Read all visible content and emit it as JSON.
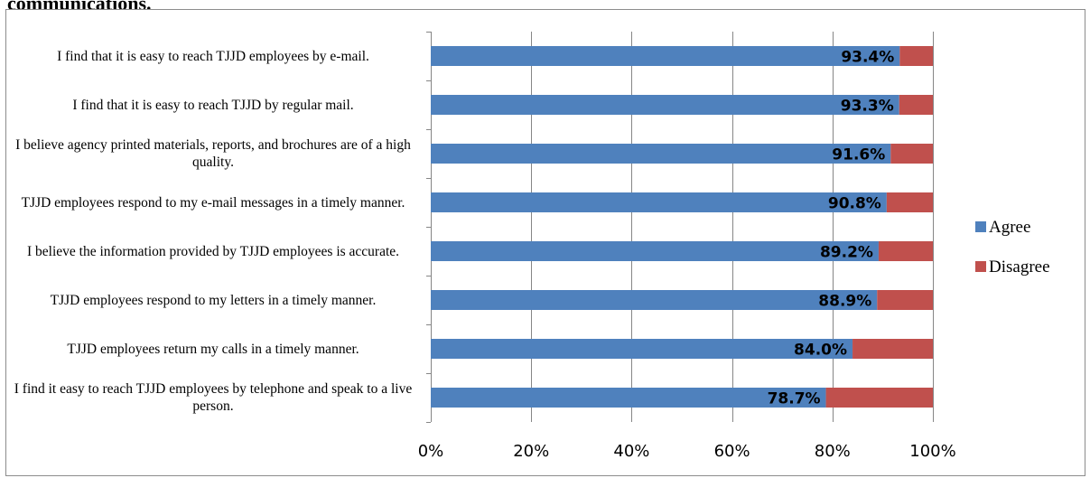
{
  "heading": "communications.",
  "colors": {
    "agree": "#4f81bd",
    "disagree": "#c0504d",
    "grid": "#868686",
    "axis": "#868686"
  },
  "chart_data": {
    "type": "bar",
    "orientation": "horizontal",
    "stacked": "percent",
    "categories": [
      "I find that it is easy to reach TJJD employees by e-mail.",
      "I find that it is easy to reach TJJD by regular mail.",
      "I believe agency printed materials, reports, and brochures are of a high quality.",
      "TJJD employees respond to my e-mail messages in a timely manner.",
      "I believe the information provided by TJJD employees is accurate.",
      "TJJD employees respond to my letters in a timely manner.",
      "TJJD employees return my calls in a timely manner.",
      "I find it easy to reach TJJD employees by telephone and speak to a live person."
    ],
    "series": [
      {
        "name": "Agree",
        "values": [
          93.4,
          93.3,
          91.6,
          90.8,
          89.2,
          88.9,
          84.0,
          78.7
        ]
      },
      {
        "name": "Disagree",
        "values": [
          6.6,
          6.7,
          8.4,
          9.2,
          10.8,
          11.1,
          16.0,
          21.3
        ]
      }
    ],
    "data_labels": [
      "93.4%",
      "93.3%",
      "91.6%",
      "90.8%",
      "89.2%",
      "88.9%",
      "84.0%",
      "78.7%"
    ],
    "xlim": [
      0,
      100
    ],
    "xticks": [
      "0%",
      "20%",
      "40%",
      "60%",
      "80%",
      "100%"
    ],
    "grid": true,
    "legend_position": "right"
  }
}
